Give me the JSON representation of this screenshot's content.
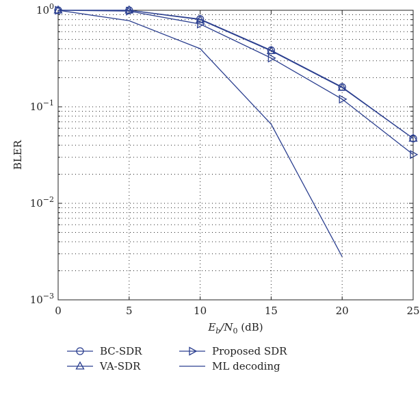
{
  "chart_data": {
    "type": "line",
    "y_scale": "log",
    "xlabel": {
      "base": "E",
      "base_sub": "b",
      "over": "/N",
      "over_sub": "0",
      "unit": " (dB)"
    },
    "ylabel": "BLER",
    "xlim": [
      0,
      25
    ],
    "ylim": [
      0.001,
      1
    ],
    "xticks": [
      0,
      5,
      10,
      15,
      20,
      25
    ],
    "xtick_labels": [
      "0",
      "5",
      "10",
      "15",
      "20",
      "25"
    ],
    "yticks": [
      0.001,
      0.01,
      0.1,
      1
    ],
    "ytick_labels": [
      {
        "base": "10",
        "exp": "−3"
      },
      {
        "base": "10",
        "exp": "−2"
      },
      {
        "base": "10",
        "exp": "−1"
      },
      {
        "base": "10",
        "exp": "0"
      }
    ],
    "grid": true,
    "legend_position": "bottom",
    "line_color": "#2b3f8f",
    "series": [
      {
        "name": "BC-SDR",
        "marker": "circle",
        "x": [
          0,
          5,
          10,
          15,
          20,
          25
        ],
        "y": [
          1.0,
          1.0,
          0.81,
          0.385,
          0.16,
          0.047
        ]
      },
      {
        "name": "VA-SDR",
        "marker": "triangle-up",
        "x": [
          0,
          5,
          10,
          15,
          20,
          25
        ],
        "y": [
          1.0,
          1.0,
          0.8,
          0.38,
          0.158,
          0.047
        ]
      },
      {
        "name": "Proposed SDR",
        "marker": "triangle-right",
        "x": [
          0,
          5,
          10,
          15,
          20,
          25
        ],
        "y": [
          1.0,
          0.98,
          0.72,
          0.32,
          0.12,
          0.032
        ]
      },
      {
        "name": "ML decoding",
        "marker": "none",
        "x": [
          0,
          5,
          10,
          15,
          20
        ],
        "y": [
          1.0,
          0.78,
          0.4,
          0.066,
          0.0028
        ]
      }
    ]
  }
}
